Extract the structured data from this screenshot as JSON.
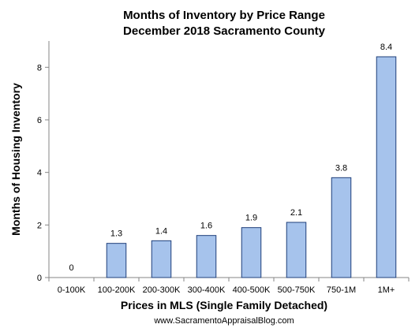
{
  "chart_data": {
    "type": "bar",
    "title": "Months of Inventory by Price Range",
    "subtitle": "December 2018 Sacramento County",
    "xlabel": "Prices in MLS (Single Family Detached)",
    "ylabel": "Months of Housing Inventory",
    "categories": [
      "0-100K",
      "100-200K",
      "200-300K",
      "300-400K",
      "400-500K",
      "500-750K",
      "750-1M",
      "1M+"
    ],
    "values": [
      0,
      1.3,
      1.4,
      1.6,
      1.9,
      2.1,
      3.8,
      8.4
    ],
    "data_labels": [
      "0",
      "1.3",
      "1.4",
      "1.6",
      "1.9",
      "2.1",
      "3.8",
      "8.4"
    ],
    "ylim": [
      0,
      9
    ],
    "yticks": [
      0,
      2,
      4,
      6,
      8
    ],
    "grid": false,
    "legend": "none",
    "bar_fill": "#a6c3ec",
    "bar_stroke": "#1f3f7a",
    "footer": "www.SacramentoAppraisalBlog.com"
  }
}
